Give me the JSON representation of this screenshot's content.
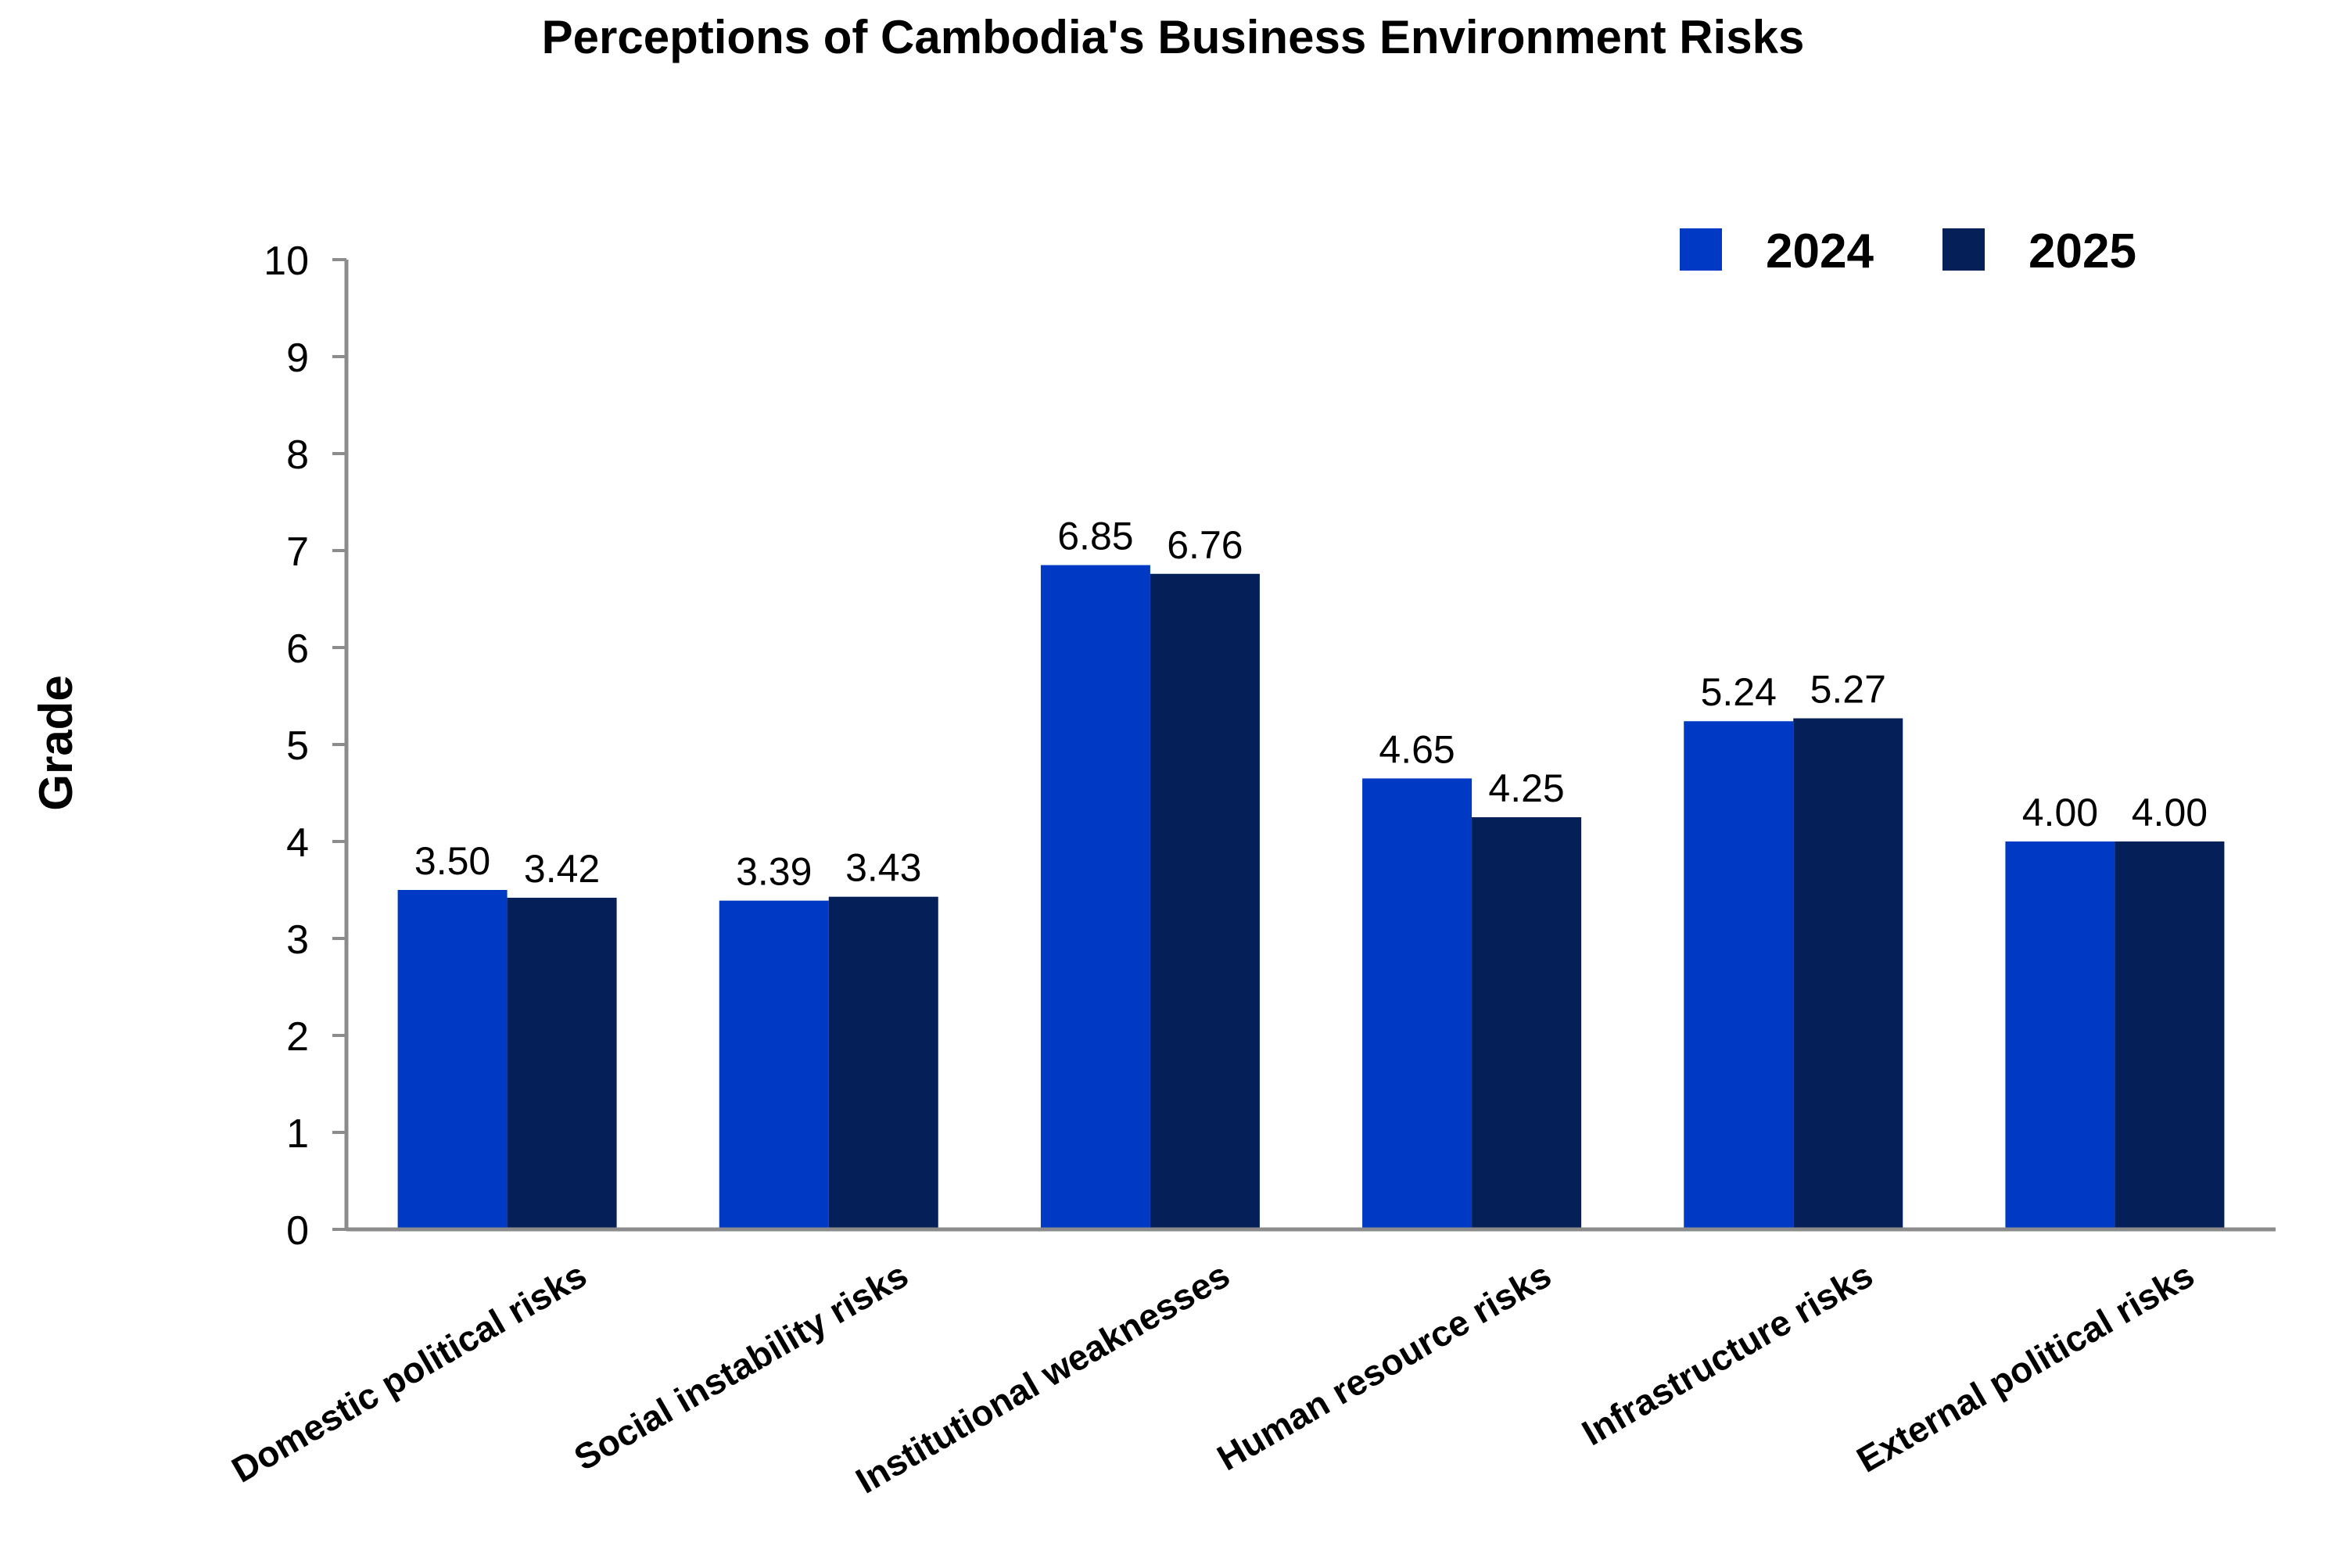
{
  "chart_data": {
    "type": "bar",
    "title": "Perceptions of Cambodia's Business Environment Risks",
    "xlabel": "",
    "ylabel": "Grade",
    "ylim": [
      0,
      10
    ],
    "yticks": [
      "0",
      "1",
      "2",
      "3",
      "4",
      "5",
      "6",
      "7",
      "8",
      "9",
      "10"
    ],
    "categories": [
      "Domestic political risks",
      "Social instability risks",
      "Institutional weaknesses",
      "Human resource risks",
      "Infrastructure risks",
      "External political risks"
    ],
    "series": [
      {
        "name": "2024",
        "color": "#0039C4",
        "values": [
          3.5,
          3.39,
          6.85,
          4.65,
          5.24,
          4.0
        ],
        "labels": [
          "3.50",
          "3.39",
          "6.85",
          "4.65",
          "5.24",
          "4.00"
        ]
      },
      {
        "name": "2025",
        "color": "#051F59",
        "values": [
          3.42,
          3.43,
          6.76,
          4.25,
          5.27,
          4.0
        ],
        "labels": [
          "3.42",
          "3.43",
          "6.76",
          "4.25",
          "5.27",
          "4.00"
        ]
      }
    ],
    "grid": false,
    "legend_position": "top-right",
    "axis_color": "#8C8C8C"
  }
}
